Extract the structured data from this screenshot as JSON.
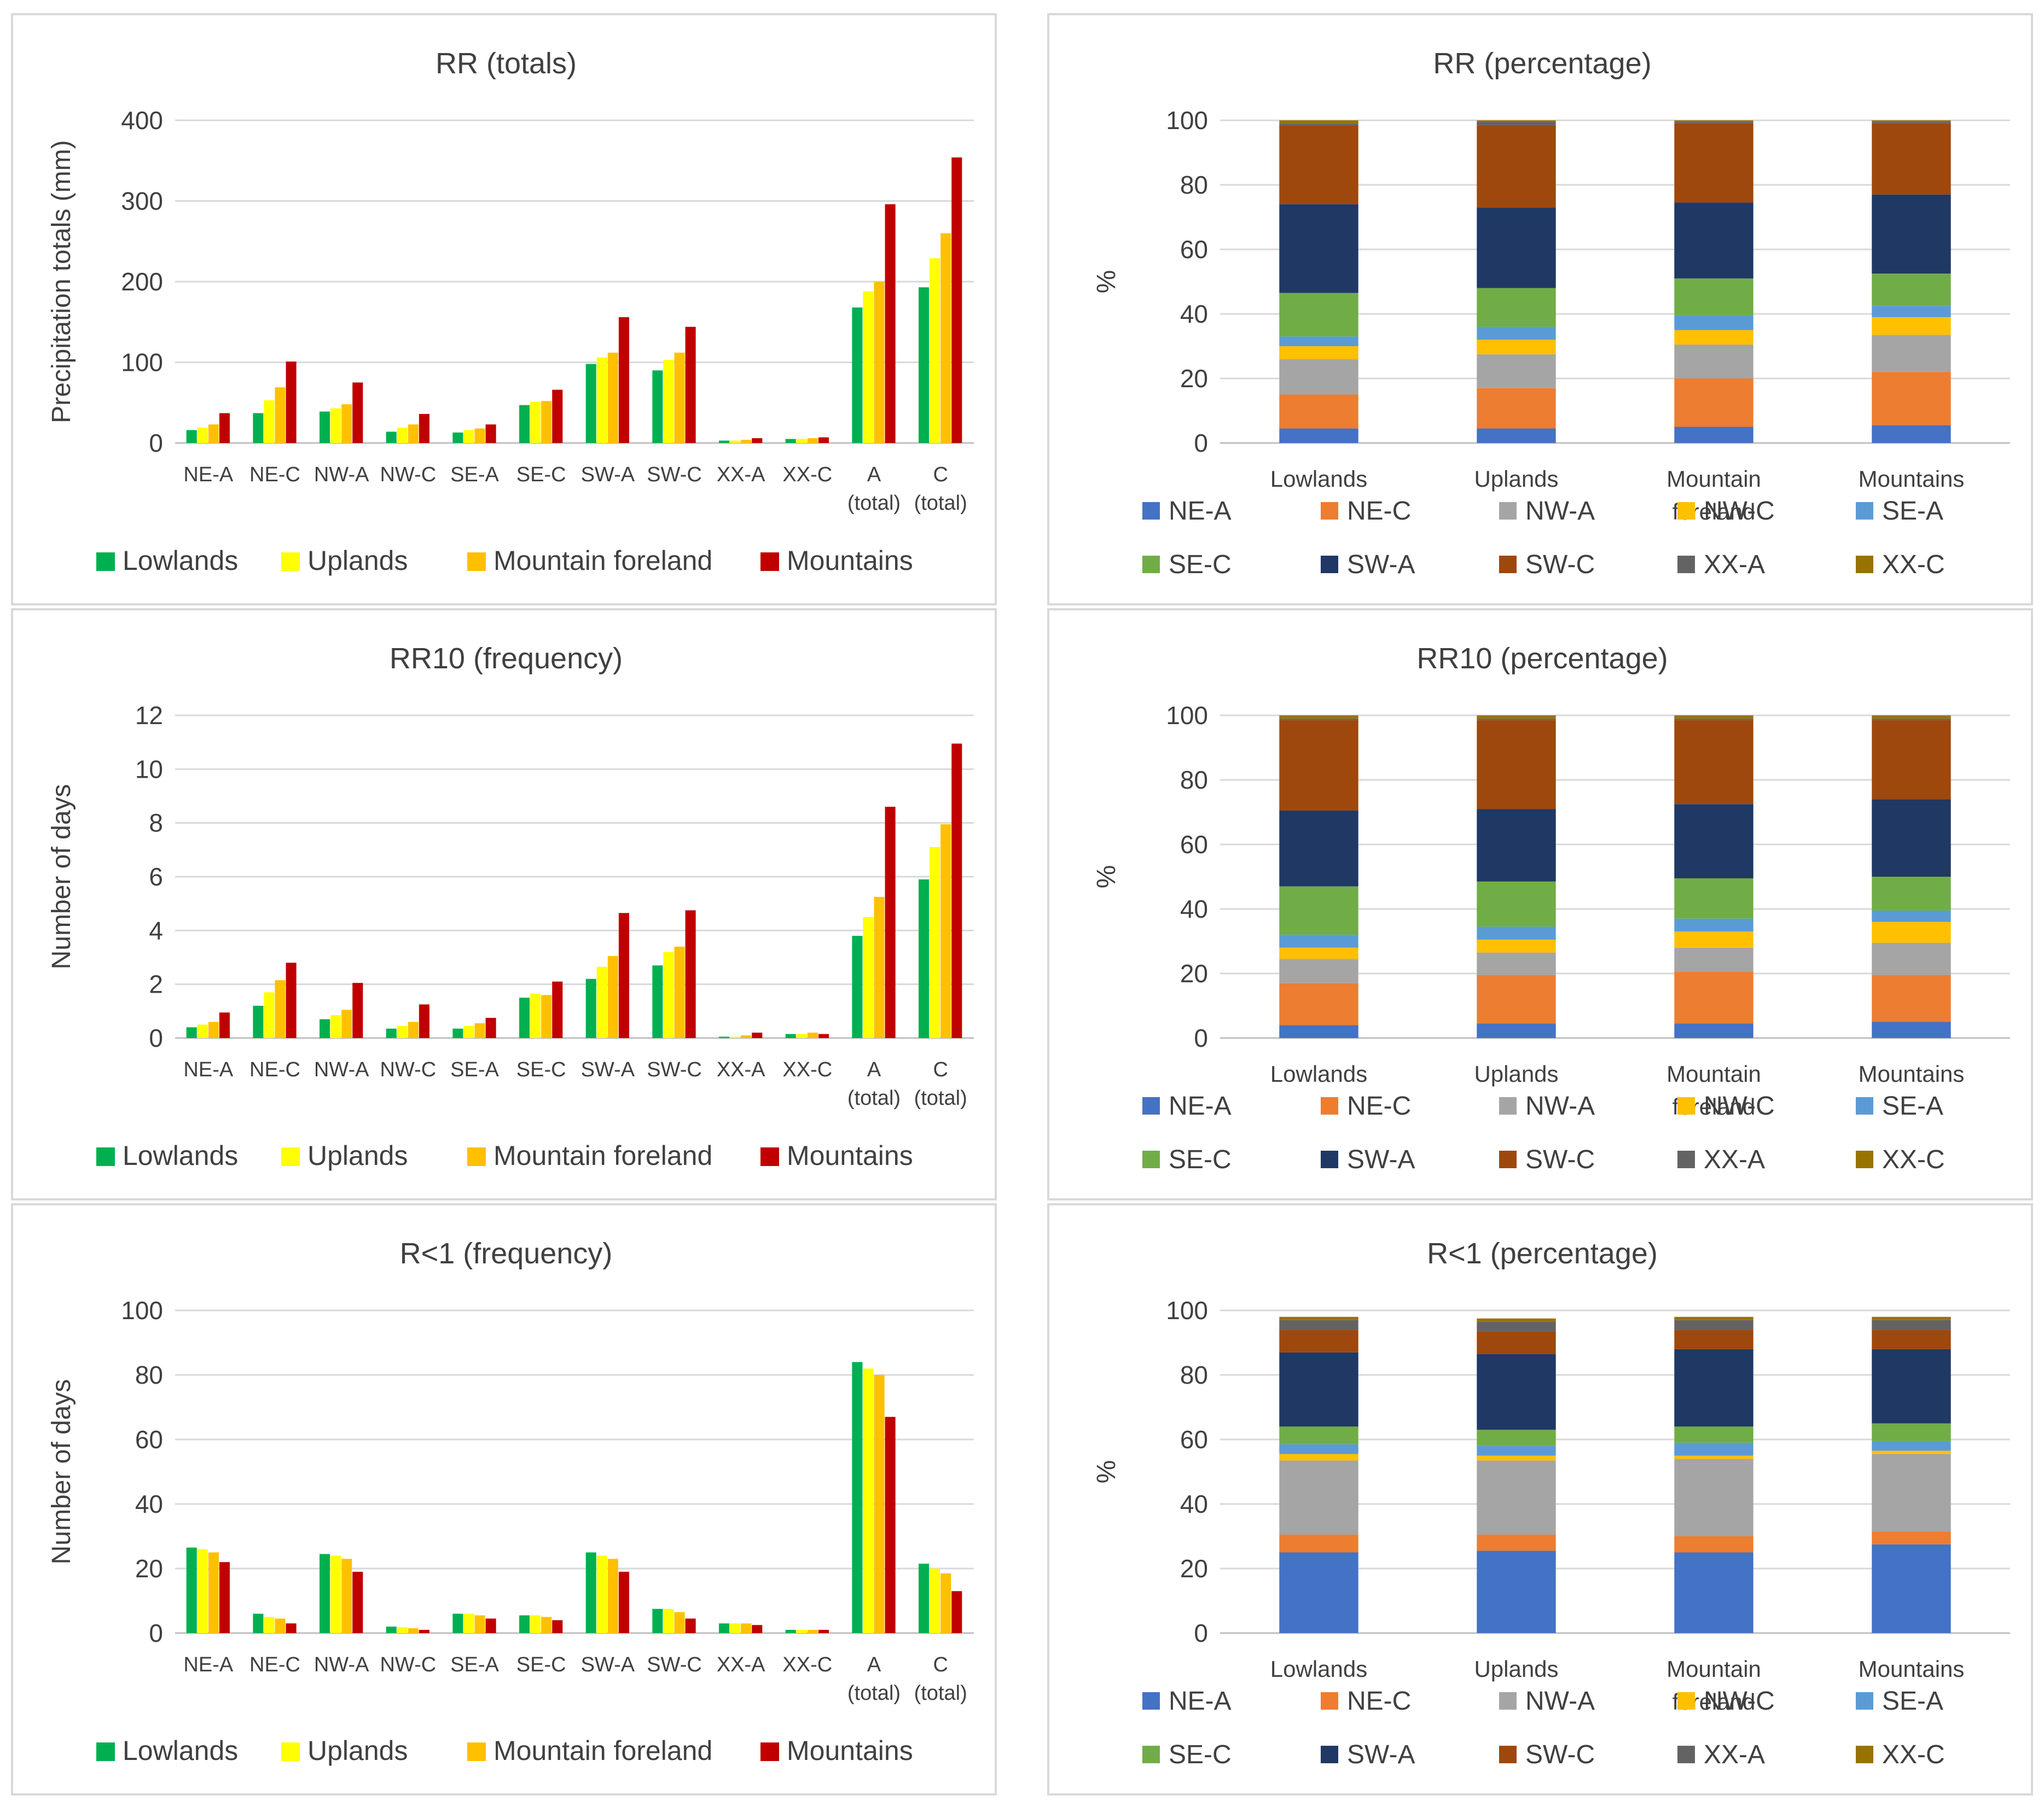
{
  "charts": {
    "legend_grouped": [
      {
        "name": "Lowlands",
        "color": "#00b050"
      },
      {
        "name": "Uplands",
        "color": "#ffff00"
      },
      {
        "name": "Mountain foreland",
        "color": "#ffc000"
      },
      {
        "name": "Mountains",
        "color": "#c00000"
      }
    ],
    "legend_stacked": [
      {
        "name": "NE-A",
        "color": "#4472c4"
      },
      {
        "name": "NE-C",
        "color": "#ed7d31"
      },
      {
        "name": "NW-A",
        "color": "#a5a5a5"
      },
      {
        "name": "NW-C",
        "color": "#ffc000"
      },
      {
        "name": "SE-A",
        "color": "#5b9bd5"
      },
      {
        "name": "SE-C",
        "color": "#70ad47"
      },
      {
        "name": "SW-A",
        "color": "#203864"
      },
      {
        "name": "SW-C",
        "color": "#9e480e"
      },
      {
        "name": "XX-A",
        "color": "#636363"
      },
      {
        "name": "XX-C",
        "color": "#997300"
      }
    ]
  },
  "chart_data": [
    {
      "type": "bar",
      "title": "RR (totals)",
      "ylabel": "Precipitation totals (mm)",
      "ylim": [
        0,
        400
      ],
      "yticks": [
        "0",
        "100",
        "200",
        "300",
        "400"
      ],
      "categories": [
        "NE-A",
        "NE-C",
        "NW-A",
        "NW-C",
        "SE-A",
        "SE-C",
        "SW-A",
        "SW-C",
        "XX-A",
        "XX-C",
        "A|(total)",
        "C|(total)"
      ],
      "series": [
        {
          "name": "Lowlands",
          "values": [
            16,
            37,
            39,
            14,
            13,
            47,
            98,
            90,
            3,
            5,
            168,
            193
          ]
        },
        {
          "name": "Uplands",
          "values": [
            19,
            53,
            43,
            19,
            16,
            51,
            106,
            103,
            3,
            5,
            188,
            229
          ]
        },
        {
          "name": "Mountain foreland",
          "values": [
            23,
            69,
            48,
            23,
            18,
            52,
            112,
            112,
            4,
            6,
            200,
            260
          ]
        },
        {
          "name": "Mountains",
          "values": [
            37,
            101,
            75,
            36,
            23,
            66,
            156,
            144,
            6,
            7,
            296,
            354
          ]
        }
      ],
      "legend": "bottom"
    },
    {
      "type": "bar",
      "title": "RR (percentage)",
      "ylabel": "%",
      "ylim": [
        0,
        100
      ],
      "yticks": [
        "0",
        "20",
        "40",
        "60",
        "80",
        "100"
      ],
      "stacked": true,
      "categories": [
        "Lowlands",
        "Uplands",
        "Mountain|foreland",
        "Mountains"
      ],
      "series": [
        {
          "name": "NE-A",
          "values": [
            4.5,
            4.5,
            5,
            5.5
          ]
        },
        {
          "name": "NE-C",
          "values": [
            10.5,
            12.5,
            15,
            16.5
          ]
        },
        {
          "name": "NW-A",
          "values": [
            11,
            10.5,
            10.5,
            11.5
          ]
        },
        {
          "name": "NW-C",
          "values": [
            4,
            4.5,
            4.5,
            5.5
          ]
        },
        {
          "name": "SE-A",
          "values": [
            3,
            4,
            4.5,
            3.5
          ]
        },
        {
          "name": "SE-C",
          "values": [
            13.5,
            12,
            11.5,
            10
          ]
        },
        {
          "name": "SW-A",
          "values": [
            27.5,
            25,
            23.5,
            24.5
          ]
        },
        {
          "name": "SW-C",
          "values": [
            24.5,
            25.5,
            24.5,
            22
          ]
        },
        {
          "name": "XX-A",
          "values": [
            0.5,
            1,
            0.5,
            0.5
          ]
        },
        {
          "name": "XX-C",
          "values": [
            1,
            0.5,
            0.5,
            0.5
          ]
        }
      ],
      "legend": "bottom"
    },
    {
      "type": "bar",
      "title": "RR10 (frequency)",
      "ylabel": "Number of days",
      "ylim": [
        0,
        12
      ],
      "yticks": [
        "0",
        "2",
        "4",
        "6",
        "8",
        "10",
        "12"
      ],
      "categories": [
        "NE-A",
        "NE-C",
        "NW-A",
        "NW-C",
        "SE-A",
        "SE-C",
        "SW-A",
        "SW-C",
        "XX-A",
        "XX-C",
        "A|(total)",
        "C|(total)"
      ],
      "series": [
        {
          "name": "Lowlands",
          "values": [
            0.4,
            1.2,
            0.7,
            0.35,
            0.35,
            1.5,
            2.2,
            2.7,
            0.05,
            0.15,
            3.8,
            5.9
          ]
        },
        {
          "name": "Uplands",
          "values": [
            0.5,
            1.7,
            0.85,
            0.45,
            0.45,
            1.65,
            2.65,
            3.2,
            0.05,
            0.15,
            4.5,
            7.1
          ]
        },
        {
          "name": "Mountain foreland",
          "values": [
            0.6,
            2.15,
            1.05,
            0.6,
            0.55,
            1.6,
            3.05,
            3.4,
            0.1,
            0.2,
            5.25,
            7.95
          ]
        },
        {
          "name": "Mountains",
          "values": [
            0.95,
            2.8,
            2.05,
            1.25,
            0.75,
            2.1,
            4.65,
            4.75,
            0.2,
            0.15,
            8.6,
            10.95
          ]
        }
      ],
      "legend": "bottom"
    },
    {
      "type": "bar",
      "title": "RR10 (percentage)",
      "ylabel": "%",
      "ylim": [
        0,
        100
      ],
      "yticks": [
        "0",
        "20",
        "40",
        "60",
        "80",
        "100"
      ],
      "stacked": true,
      "categories": [
        "Lowlands",
        "Uplands",
        "Mountain|foreland",
        "Mountains"
      ],
      "series": [
        {
          "name": "NE-A",
          "values": [
            4,
            4.5,
            4.5,
            5
          ]
        },
        {
          "name": "NE-C",
          "values": [
            13,
            15,
            16,
            14.5
          ]
        },
        {
          "name": "NW-A",
          "values": [
            7.5,
            7,
            7.5,
            10
          ]
        },
        {
          "name": "NW-C",
          "values": [
            3.5,
            4,
            5,
            6.5
          ]
        },
        {
          "name": "SE-A",
          "values": [
            4,
            4,
            4,
            3.5
          ]
        },
        {
          "name": "SE-C",
          "values": [
            15,
            14,
            12.5,
            10.5
          ]
        },
        {
          "name": "SW-A",
          "values": [
            23.5,
            22.5,
            23,
            24
          ]
        },
        {
          "name": "SW-C",
          "values": [
            28,
            27.5,
            26,
            24.5
          ]
        },
        {
          "name": "XX-A",
          "values": [
            0.5,
            0.5,
            0.5,
            0.5
          ]
        },
        {
          "name": "XX-C",
          "values": [
            1,
            1,
            1,
            1
          ]
        }
      ],
      "legend": "bottom"
    },
    {
      "type": "bar",
      "title": "R<1 (frequency)",
      "ylabel": "Number of days",
      "ylim": [
        0,
        100
      ],
      "yticks": [
        "0",
        "20",
        "40",
        "60",
        "80",
        "100"
      ],
      "categories": [
        "NE-A",
        "NE-C",
        "NW-A",
        "NW-C",
        "SE-A",
        "SE-C",
        "SW-A",
        "SW-C",
        "XX-A",
        "XX-C",
        "A|(total)",
        "C|(total)"
      ],
      "series": [
        {
          "name": "Lowlands",
          "values": [
            26.5,
            6,
            24.5,
            2,
            6,
            5.5,
            25,
            7.5,
            3,
            1,
            84,
            21.5
          ]
        },
        {
          "name": "Uplands",
          "values": [
            26,
            5,
            24,
            1.8,
            6,
            5.5,
            24,
            7.5,
            3,
            1,
            82,
            20
          ]
        },
        {
          "name": "Mountain foreland",
          "values": [
            25,
            4.5,
            23,
            1.5,
            5.5,
            5,
            23,
            6.5,
            3,
            1,
            80,
            18.5
          ]
        },
        {
          "name": "Mountains",
          "values": [
            22,
            3,
            19,
            1,
            4.5,
            4,
            19,
            4.5,
            2.5,
            1,
            67,
            13
          ]
        }
      ],
      "legend": "bottom"
    },
    {
      "type": "bar",
      "title": "R<1 (percentage)",
      "ylabel": "%",
      "ylim": [
        0,
        100
      ],
      "yticks": [
        "0",
        "20",
        "40",
        "60",
        "80",
        "100"
      ],
      "stacked": true,
      "categories": [
        "Lowlands",
        "Uplands",
        "Mountain|foreland",
        "Mountains"
      ],
      "series": [
        {
          "name": "NE-A",
          "values": [
            25,
            25.5,
            25,
            27.5
          ]
        },
        {
          "name": "NE-C",
          "values": [
            5.5,
            5,
            5,
            4
          ]
        },
        {
          "name": "NW-A",
          "values": [
            23,
            23,
            24,
            24
          ]
        },
        {
          "name": "NW-C",
          "values": [
            2,
            1.5,
            1,
            1
          ]
        },
        {
          "name": "SE-A",
          "values": [
            3,
            3,
            4,
            3
          ]
        },
        {
          "name": "SE-C",
          "values": [
            5.5,
            5,
            5,
            5.5
          ]
        },
        {
          "name": "SW-A",
          "values": [
            23,
            23.5,
            24,
            23
          ]
        },
        {
          "name": "SW-C",
          "values": [
            7,
            7,
            6,
            6
          ]
        },
        {
          "name": "XX-A",
          "values": [
            3,
            3,
            3,
            3
          ]
        },
        {
          "name": "XX-C",
          "values": [
            1,
            1,
            1,
            1
          ]
        }
      ],
      "legend": "bottom"
    }
  ]
}
